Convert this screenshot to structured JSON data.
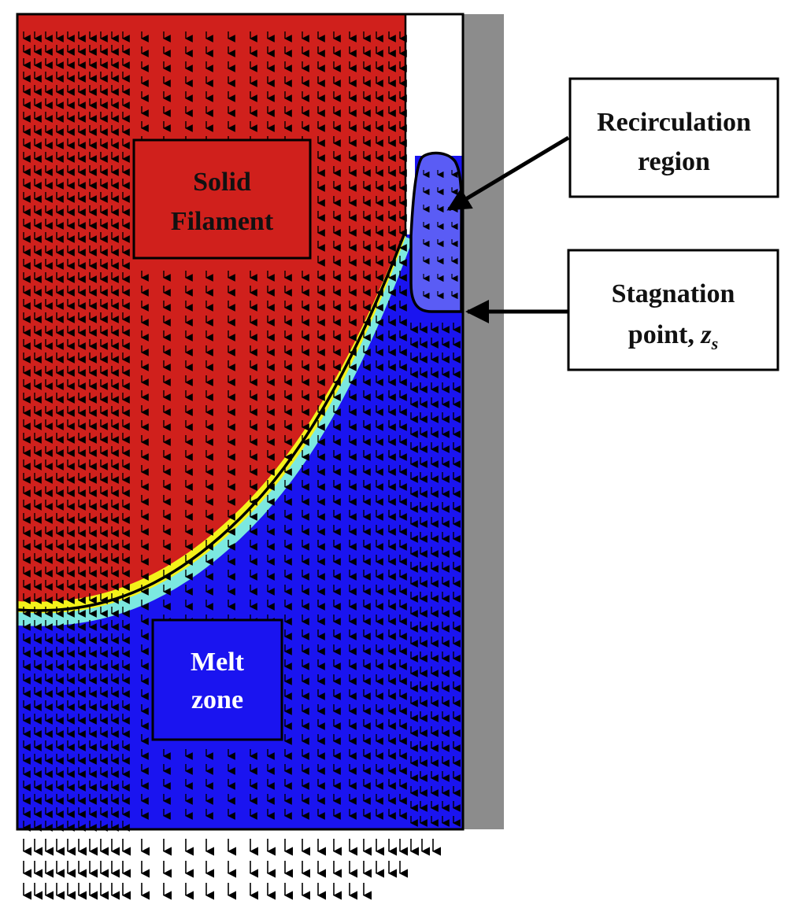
{
  "diagram": {
    "labels": {
      "solid": [
        "Solid",
        "Filament"
      ],
      "melt": [
        "Melt",
        "zone"
      ],
      "recirculation": [
        "Recirculation",
        "region"
      ],
      "stagnation_line1": "Stagnation",
      "stagnation_line2": "point, ",
      "stagnation_var": "z",
      "stagnation_sub": "s"
    },
    "colors": {
      "solid": "#d0201c",
      "melt": "#1a14f0",
      "recirculation": "#5a5cf5",
      "wall": "#8c8c8c",
      "interface_yellow": "#f4f21a",
      "interface_cyan": "#7ce8e0",
      "arrow": "#000000",
      "outline": "#000000",
      "label_text_solid": "#111111",
      "label_text_melt": "#ffffff"
    }
  }
}
